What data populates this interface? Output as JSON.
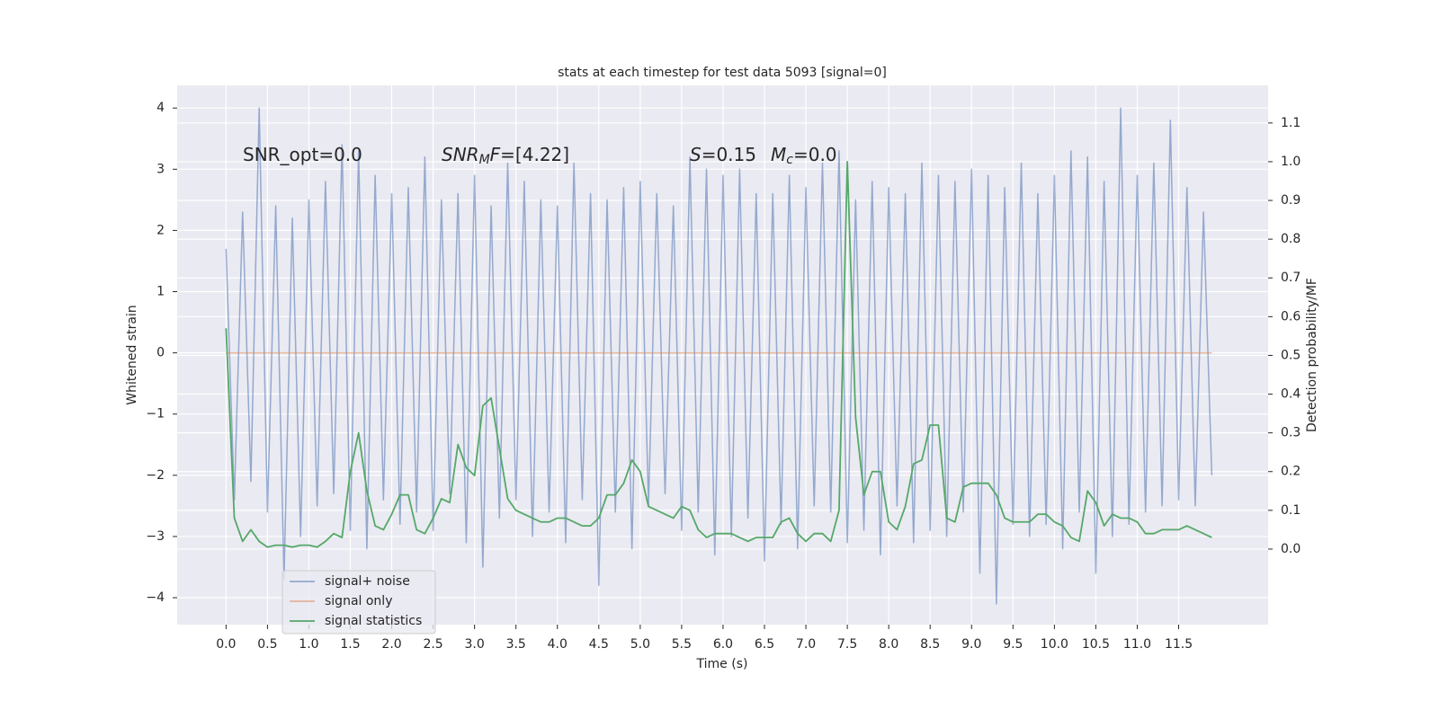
{
  "chart_data": {
    "type": "line",
    "title": "stats at each timestep for test data 5093 [signal=0]",
    "xlabel": "Time (s)",
    "ylabel": "Whitened strain",
    "y2label": "Detection probability/MF",
    "annotations": [
      {
        "parts": [
          "SNR_opt=0.0"
        ]
      },
      {
        "parts": [
          "SNR",
          "M",
          "F",
          "=[4.22]"
        ]
      },
      {
        "parts": [
          "S",
          "=0.15",
          "M",
          "c",
          "=0.0"
        ]
      }
    ],
    "x": [
      0,
      0.1,
      0.2,
      0.3,
      0.4,
      0.5,
      0.6,
      0.7,
      0.8,
      0.9,
      1,
      1.1,
      1.2,
      1.3,
      1.4,
      1.5,
      1.6,
      1.7,
      1.8,
      1.9,
      2,
      2.1,
      2.2,
      2.3,
      2.4,
      2.5,
      2.6,
      2.7,
      2.8,
      2.9,
      3,
      3.1,
      3.2,
      3.3,
      3.4,
      3.5,
      3.6,
      3.7,
      3.8,
      3.9,
      4,
      4.1,
      4.2,
      4.3,
      4.4,
      4.5,
      4.6,
      4.7,
      4.8,
      4.9,
      5,
      5.1,
      5.2,
      5.3,
      5.4,
      5.5,
      5.6,
      5.7,
      5.8,
      5.9,
      6,
      6.1,
      6.2,
      6.3,
      6.4,
      6.5,
      6.6,
      6.7,
      6.8,
      6.9,
      7,
      7.1,
      7.2,
      7.3,
      7.4,
      7.5,
      7.6,
      7.7,
      7.8,
      7.9,
      8,
      8.1,
      8.2,
      8.3,
      8.4,
      8.5,
      8.6,
      8.7,
      8.8,
      8.9,
      9,
      9.1,
      9.2,
      9.3,
      9.4,
      9.5,
      9.6,
      9.7,
      9.8,
      9.9,
      10,
      10.1,
      10.2,
      10.3,
      10.4,
      10.5,
      10.6,
      10.7,
      10.8,
      10.9,
      11,
      11.1,
      11.2,
      11.3,
      11.4,
      11.5,
      11.6,
      11.7,
      11.8,
      11.9
    ],
    "series": [
      {
        "name": "signal+ noise",
        "color": "#4c72b0",
        "values": [
          1.7,
          -2.4,
          2.3,
          -2.1,
          4.0,
          -2.6,
          2.4,
          -3.7,
          2.2,
          -3.0,
          2.5,
          -2.5,
          2.8,
          -2.3,
          3.4,
          -2.9,
          3.3,
          -3.2,
          2.9,
          -2.4,
          2.6,
          -2.8,
          2.7,
          -2.6,
          3.2,
          -2.9,
          2.5,
          -2.3,
          2.6,
          -3.1,
          2.9,
          -3.5,
          2.4,
          -2.7,
          3.1,
          -2.4,
          2.8,
          -3.0,
          2.5,
          -2.6,
          2.4,
          -3.1,
          3.1,
          -2.4,
          2.6,
          -3.8,
          2.5,
          -2.6,
          2.7,
          -3.2,
          2.8,
          -2.5,
          2.6,
          -2.3,
          2.4,
          -2.9,
          3.2,
          -2.6,
          3.0,
          -3.3,
          2.9,
          -3.0,
          3.0,
          -2.7,
          2.6,
          -3.4,
          2.6,
          -2.8,
          2.9,
          -3.2,
          2.7,
          -2.5,
          3.1,
          -2.6,
          3.3,
          -3.1,
          2.5,
          -2.9,
          2.8,
          -3.3,
          2.7,
          -2.5,
          2.6,
          -3.1,
          3.1,
          -2.9,
          2.9,
          -3.0,
          2.8,
          -2.6,
          3.0,
          -3.6,
          2.9,
          -4.1,
          2.7,
          -2.8,
          3.1,
          -3.0,
          2.6,
          -2.8,
          2.9,
          -3.2,
          3.3,
          -2.6,
          3.2,
          -3.6,
          2.8,
          -3.0,
          4.0,
          -2.8,
          2.9,
          -2.6,
          3.1,
          -2.5,
          3.8,
          -2.4,
          2.7,
          -2.5,
          2.3,
          -2.0
        ]
      },
      {
        "name": "signal only",
        "color": "#dd8452",
        "values": [
          0,
          0,
          0,
          0,
          0,
          0,
          0,
          0,
          0,
          0,
          0,
          0,
          0,
          0,
          0,
          0,
          0,
          0,
          0,
          0,
          0,
          0,
          0,
          0,
          0,
          0,
          0,
          0,
          0,
          0,
          0,
          0,
          0,
          0,
          0,
          0,
          0,
          0,
          0,
          0,
          0,
          0,
          0,
          0,
          0,
          0,
          0,
          0,
          0,
          0,
          0,
          0,
          0,
          0,
          0,
          0,
          0,
          0,
          0,
          0,
          0,
          0,
          0,
          0,
          0,
          0,
          0,
          0,
          0,
          0,
          0,
          0,
          0,
          0,
          0,
          0,
          0,
          0,
          0,
          0,
          0,
          0,
          0,
          0,
          0,
          0,
          0,
          0,
          0,
          0,
          0,
          0,
          0,
          0,
          0,
          0,
          0,
          0,
          0,
          0,
          0,
          0,
          0,
          0,
          0,
          0,
          0,
          0,
          0,
          0,
          0,
          0,
          0,
          0,
          0,
          0,
          0,
          0,
          0,
          0
        ]
      },
      {
        "name": "signal statistics",
        "color": "#55a868",
        "axis": "y2",
        "values": [
          0.57,
          0.08,
          0.02,
          0.05,
          0.02,
          0.005,
          0.01,
          0.01,
          0.005,
          0.01,
          0.01,
          0.005,
          0.02,
          0.04,
          0.03,
          0.2,
          0.3,
          0.15,
          0.06,
          0.05,
          0.09,
          0.14,
          0.14,
          0.05,
          0.04,
          0.08,
          0.13,
          0.12,
          0.27,
          0.21,
          0.19,
          0.37,
          0.39,
          0.26,
          0.13,
          0.1,
          0.09,
          0.08,
          0.07,
          0.07,
          0.08,
          0.08,
          0.07,
          0.06,
          0.06,
          0.08,
          0.14,
          0.14,
          0.17,
          0.23,
          0.2,
          0.11,
          0.1,
          0.09,
          0.08,
          0.11,
          0.1,
          0.05,
          0.03,
          0.04,
          0.04,
          0.04,
          0.03,
          0.02,
          0.03,
          0.03,
          0.03,
          0.07,
          0.08,
          0.04,
          0.02,
          0.04,
          0.04,
          0.02,
          0.1,
          1.0,
          0.34,
          0.14,
          0.2,
          0.2,
          0.07,
          0.05,
          0.11,
          0.22,
          0.23,
          0.32,
          0.32,
          0.08,
          0.07,
          0.16,
          0.17,
          0.17,
          0.17,
          0.14,
          0.08,
          0.07,
          0.07,
          0.07,
          0.09,
          0.09,
          0.07,
          0.06,
          0.03,
          0.02,
          0.15,
          0.12,
          0.06,
          0.09,
          0.08,
          0.08,
          0.07,
          0.04,
          0.04,
          0.05,
          0.05,
          0.05,
          0.06,
          0.05,
          0.04,
          0.03
        ]
      }
    ],
    "xlim": [
      -0.59,
      12.58
    ],
    "xticks": [
      {
        "value": 0,
        "label": "0.0"
      },
      0.5,
      {
        "value": 1,
        "label": "1.0"
      },
      1.5,
      {
        "value": 2,
        "label": "2.0"
      },
      2.5,
      {
        "value": 3,
        "label": "3.0"
      },
      3.5,
      {
        "value": 4,
        "label": "4.0"
      },
      4.5,
      {
        "value": 5,
        "label": "5.0"
      },
      5.5,
      {
        "value": 6,
        "label": "6.0"
      },
      6.5,
      {
        "value": 7,
        "label": "7.0"
      },
      7.5,
      {
        "value": 8,
        "label": "8.0"
      },
      8.5,
      {
        "value": 9,
        "label": "9.0"
      },
      9.5,
      {
        "value": 10,
        "label": "10.0"
      },
      10.5,
      {
        "value": 11,
        "label": "11.0"
      },
      11.5
    ],
    "ylim": [
      -4.44,
      4.37
    ],
    "yticks": [
      {
        "value": -4,
        "label": "−4"
      },
      {
        "value": -3,
        "label": "−3"
      },
      {
        "value": -2,
        "label": "−2"
      },
      {
        "value": -1,
        "label": "−1"
      },
      0,
      1,
      2,
      3,
      4
    ],
    "y2lim": [
      -0.195,
      1.197
    ],
    "y2ticks": [
      {
        "value": 0,
        "label": "0.0"
      },
      0.1,
      0.2,
      0.3,
      0.4,
      0.5,
      0.6,
      0.7,
      0.8,
      0.9,
      {
        "value": 1,
        "label": "1.0"
      },
      1.1
    ],
    "grid": true,
    "legend": "lower left"
  }
}
